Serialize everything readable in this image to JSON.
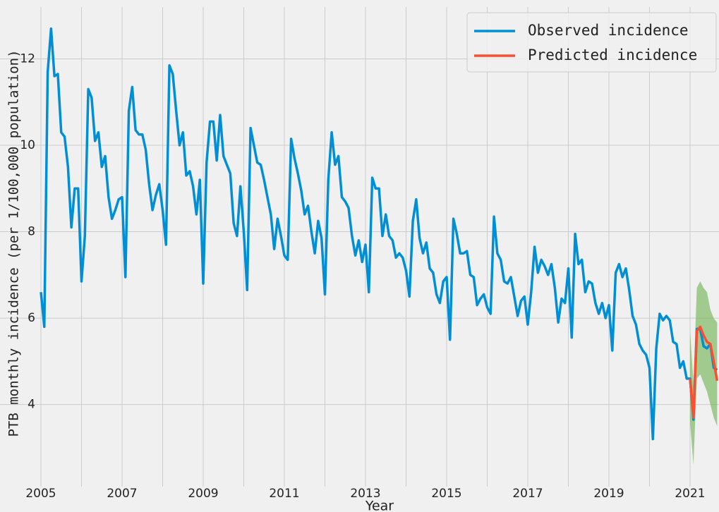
{
  "chart_data": {
    "type": "line",
    "x_label": "Year",
    "y_label": "PTB monthly incidence (per 1/100,000 population)",
    "x": [
      2005,
      2005.083,
      2005.167,
      2005.25,
      2005.333,
      2005.417,
      2005.5,
      2005.583,
      2005.667,
      2005.75,
      2005.833,
      2005.917,
      2006,
      2006.083,
      2006.167,
      2006.25,
      2006.333,
      2006.417,
      2006.5,
      2006.583,
      2006.667,
      2006.75,
      2006.833,
      2006.917,
      2007,
      2007.083,
      2007.167,
      2007.25,
      2007.333,
      2007.417,
      2007.5,
      2007.583,
      2007.667,
      2007.75,
      2007.833,
      2007.917,
      2008,
      2008.083,
      2008.167,
      2008.25,
      2008.333,
      2008.417,
      2008.5,
      2008.583,
      2008.667,
      2008.75,
      2008.833,
      2008.917,
      2009,
      2009.083,
      2009.167,
      2009.25,
      2009.333,
      2009.417,
      2009.5,
      2009.583,
      2009.667,
      2009.75,
      2009.833,
      2009.917,
      2010,
      2010.083,
      2010.167,
      2010.25,
      2010.333,
      2010.417,
      2010.5,
      2010.583,
      2010.667,
      2010.75,
      2010.833,
      2010.917,
      2011,
      2011.083,
      2011.167,
      2011.25,
      2011.333,
      2011.417,
      2011.5,
      2011.583,
      2011.667,
      2011.75,
      2011.833,
      2011.917,
      2012,
      2012.083,
      2012.167,
      2012.25,
      2012.333,
      2012.417,
      2012.5,
      2012.583,
      2012.667,
      2012.75,
      2012.833,
      2012.917,
      2013,
      2013.083,
      2013.167,
      2013.25,
      2013.333,
      2013.417,
      2013.5,
      2013.583,
      2013.667,
      2013.75,
      2013.833,
      2013.917,
      2014,
      2014.083,
      2014.167,
      2014.25,
      2014.333,
      2014.417,
      2014.5,
      2014.583,
      2014.667,
      2014.75,
      2014.833,
      2014.917,
      2015,
      2015.083,
      2015.167,
      2015.25,
      2015.333,
      2015.417,
      2015.5,
      2015.583,
      2015.667,
      2015.75,
      2015.833,
      2015.917,
      2016,
      2016.083,
      2016.167,
      2016.25,
      2016.333,
      2016.417,
      2016.5,
      2016.583,
      2016.667,
      2016.75,
      2016.833,
      2016.917,
      2017,
      2017.083,
      2017.167,
      2017.25,
      2017.333,
      2017.417,
      2017.5,
      2017.583,
      2017.667,
      2017.75,
      2017.833,
      2017.917,
      2018,
      2018.083,
      2018.167,
      2018.25,
      2018.333,
      2018.417,
      2018.5,
      2018.583,
      2018.667,
      2018.75,
      2018.833,
      2018.917,
      2019,
      2019.083,
      2019.167,
      2019.25,
      2019.333,
      2019.417,
      2019.5,
      2019.583,
      2019.667,
      2019.75,
      2019.833,
      2019.917,
      2020,
      2020.083,
      2020.167,
      2020.25,
      2020.333,
      2020.417,
      2020.5,
      2020.583,
      2020.667,
      2020.75,
      2020.833,
      2020.917,
      2021,
      2021.083,
      2021.167,
      2021.25,
      2021.333,
      2021.417,
      2021.5,
      2021.583,
      2021.667
    ],
    "series": [
      {
        "name": "Observed incidence",
        "color": "#008fd5",
        "values": [
          6.6,
          5.8,
          11.7,
          12.7,
          11.6,
          11.65,
          10.3,
          10.2,
          9.5,
          8.1,
          9.0,
          9.0,
          6.85,
          7.9,
          11.3,
          11.1,
          10.1,
          10.3,
          9.5,
          9.75,
          8.8,
          8.3,
          8.5,
          8.75,
          8.8,
          6.95,
          10.8,
          11.35,
          10.35,
          10.25,
          10.25,
          9.9,
          9.1,
          8.5,
          8.85,
          9.1,
          8.5,
          7.7,
          11.85,
          11.65,
          10.8,
          10.0,
          10.3,
          9.3,
          9.4,
          9.05,
          8.4,
          9.2,
          6.8,
          9.6,
          10.55,
          10.55,
          9.65,
          10.7,
          9.75,
          9.55,
          9.35,
          8.2,
          7.9,
          9.05,
          8.0,
          6.65,
          10.4,
          10.0,
          9.6,
          9.55,
          9.2,
          8.8,
          8.4,
          7.6,
          8.3,
          7.9,
          7.45,
          7.35,
          10.15,
          9.7,
          9.35,
          8.95,
          8.4,
          8.6,
          8.0,
          7.5,
          8.25,
          7.85,
          6.55,
          9.2,
          10.3,
          9.55,
          9.75,
          8.8,
          8.7,
          8.55,
          7.9,
          7.45,
          7.8,
          7.3,
          7.7,
          6.6,
          9.25,
          9.0,
          9.0,
          7.9,
          8.4,
          7.9,
          7.8,
          7.4,
          7.5,
          7.4,
          7.1,
          6.5,
          8.25,
          8.75,
          7.85,
          7.5,
          7.75,
          7.15,
          7.05,
          6.55,
          6.35,
          6.85,
          6.95,
          5.5,
          8.3,
          7.95,
          7.5,
          7.5,
          7.55,
          7.0,
          6.95,
          6.3,
          6.45,
          6.55,
          6.25,
          6.1,
          8.35,
          7.5,
          7.35,
          6.85,
          6.8,
          6.95,
          6.5,
          6.05,
          6.4,
          6.5,
          5.85,
          6.6,
          7.65,
          7.05,
          7.35,
          7.2,
          7.0,
          7.25,
          6.7,
          5.9,
          6.45,
          6.35,
          7.15,
          5.55,
          7.95,
          7.25,
          7.35,
          6.6,
          6.85,
          6.8,
          6.35,
          6.1,
          6.35,
          6.0,
          6.3,
          5.25,
          7.05,
          7.25,
          6.95,
          7.15,
          6.65,
          6.05,
          5.85,
          5.4,
          5.25,
          5.15,
          4.85,
          3.2,
          5.3,
          6.1,
          5.95,
          6.05,
          5.95,
          5.45,
          5.4,
          4.85,
          5.0,
          4.6,
          4.6,
          3.65,
          5.75,
          5.75,
          5.35,
          5.3,
          5.4,
          4.85,
          4.8
        ]
      },
      {
        "name": "Predicted incidence",
        "color": "#fc4f30",
        "x": [
          2021,
          2021.083,
          2021.167,
          2021.25,
          2021.333,
          2021.417,
          2021.5,
          2021.583,
          2021.667
        ],
        "values": [
          4.6,
          3.7,
          5.7,
          5.8,
          5.6,
          5.45,
          5.4,
          5.0,
          4.55
        ]
      }
    ],
    "interval": {
      "color": "#6ab04c",
      "x": [
        2021,
        2021.083,
        2021.167,
        2021.25,
        2021.333,
        2021.417,
        2021.5,
        2021.583,
        2021.667
      ],
      "lower": [
        3.6,
        2.6,
        4.6,
        4.7,
        4.5,
        4.3,
        4.0,
        3.7,
        3.5
      ],
      "upper": [
        5.7,
        4.5,
        6.7,
        6.85,
        6.7,
        6.6,
        6.2,
        6.0,
        5.9
      ]
    },
    "xlim": [
      2005,
      2021.713
    ],
    "ylim": [
      2.1,
      13.2
    ],
    "xticks": [
      2005,
      2007,
      2009,
      2011,
      2013,
      2015,
      2017,
      2019,
      2021
    ],
    "xgrid": [
      2005,
      2006,
      2007,
      2008,
      2009,
      2010,
      2011,
      2012,
      2013,
      2014,
      2015,
      2016,
      2017,
      2018,
      2019,
      2020,
      2021
    ],
    "yticks": [
      4,
      6,
      8,
      10,
      12
    ],
    "grid": true,
    "legend": "upper right"
  }
}
